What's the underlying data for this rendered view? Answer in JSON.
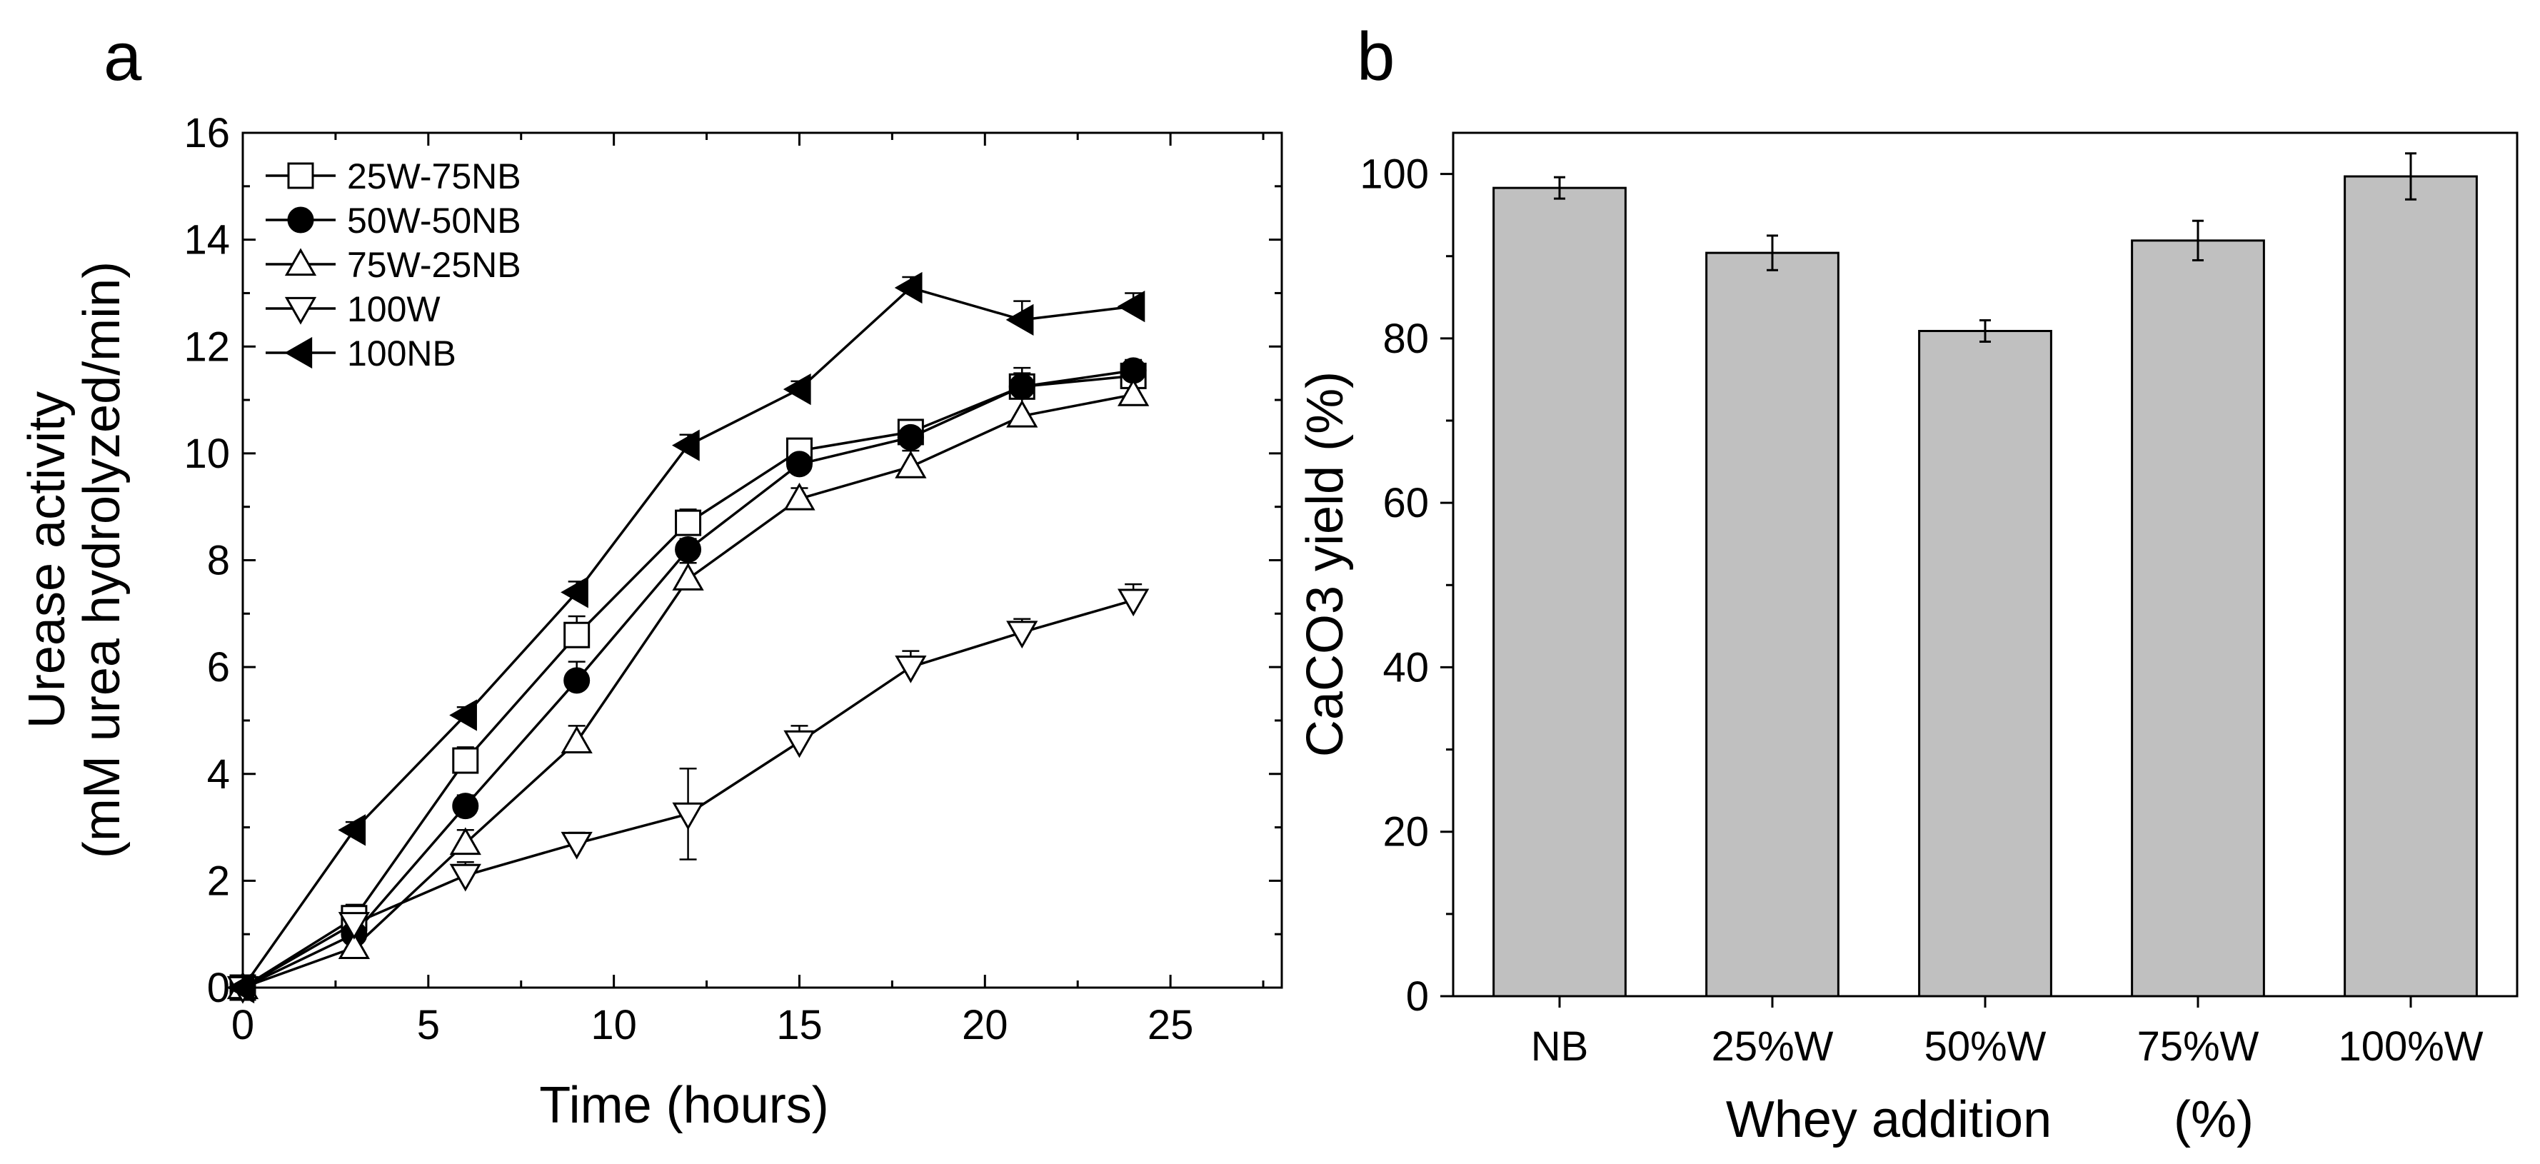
{
  "panels": {
    "a": {
      "letter": "a"
    },
    "b": {
      "letter": "b"
    }
  },
  "chart_data": [
    {
      "id": "a",
      "type": "line",
      "title": "",
      "xlabel": "Time (hours)",
      "ylabel_line1": "Urease activity",
      "ylabel_line2": "(mM urea hydrolyzed/min)",
      "xlim": [
        0,
        28
      ],
      "ylim": [
        0,
        16
      ],
      "xticks": [
        0,
        5,
        10,
        15,
        20,
        25
      ],
      "xtick_labels": [
        "0",
        "5",
        "10",
        "15",
        "20",
        "25"
      ],
      "yticks": [
        0,
        2,
        4,
        6,
        8,
        10,
        12,
        14,
        16
      ],
      "ytick_labels": [
        "0",
        "2",
        "4",
        "6",
        "8",
        "10",
        "12",
        "14",
        "16"
      ],
      "grid": false,
      "legend_position": "top-left",
      "line_color": "#000000",
      "x": [
        0,
        3,
        6,
        9,
        12,
        15,
        18,
        21,
        24
      ],
      "series": [
        {
          "name": "25W-75NB",
          "marker": "square-open",
          "values": [
            0,
            1.3,
            4.25,
            6.6,
            8.7,
            10.05,
            10.4,
            11.25,
            11.45
          ],
          "errors": [
            0.05,
            0.25,
            0.25,
            0.35,
            0.25,
            0.2,
            0.15,
            0.35,
            0.15
          ]
        },
        {
          "name": "50W-50NB",
          "marker": "circle-filled",
          "values": [
            0,
            1.0,
            3.4,
            5.75,
            8.2,
            9.8,
            10.3,
            11.25,
            11.55
          ],
          "errors": [
            0.05,
            0.2,
            0.2,
            0.35,
            0.2,
            0.2,
            0.2,
            0.25,
            0.2
          ]
        },
        {
          "name": "75W-25NB",
          "marker": "triangle-up-open",
          "values": [
            0,
            0.75,
            2.7,
            4.6,
            7.65,
            9.15,
            9.75,
            10.7,
            11.1
          ],
          "errors": [
            0.05,
            0.3,
            0.25,
            0.3,
            0.3,
            0.2,
            0.3,
            0.35,
            0.3
          ]
        },
        {
          "name": "100W",
          "marker": "triangle-down-open",
          "values": [
            0,
            1.2,
            2.1,
            2.7,
            3.25,
            4.6,
            6.0,
            6.65,
            7.25
          ],
          "errors": [
            0.05,
            0.35,
            0.25,
            0.2,
            0.85,
            0.3,
            0.3,
            0.25,
            0.3
          ]
        },
        {
          "name": "100NB",
          "marker": "triangle-left-filled",
          "values": [
            0,
            2.95,
            5.1,
            7.4,
            10.15,
            11.2,
            13.1,
            12.5,
            12.75
          ],
          "errors": [
            0.05,
            0.15,
            0.15,
            0.2,
            0.2,
            0.15,
            0.2,
            0.35,
            0.25
          ]
        }
      ]
    },
    {
      "id": "b",
      "type": "bar",
      "title": "",
      "xlabel": "Whey addition",
      "xlabel_unit": "(%)",
      "ylabel": "CaCO3 yield (%)",
      "ylim": [
        0,
        105
      ],
      "yticks": [
        0,
        20,
        40,
        60,
        80,
        100
      ],
      "ytick_labels": [
        "0",
        "20",
        "40",
        "60",
        "80",
        "100"
      ],
      "grid": false,
      "bar_color": "#c0c0c0",
      "categories": [
        "NB",
        "25%W",
        "50%W",
        "75%W",
        "100%W"
      ],
      "values": [
        98.3,
        90.4,
        80.9,
        91.9,
        99.7
      ],
      "errors": [
        1.3,
        2.1,
        1.3,
        2.4,
        2.8
      ]
    }
  ]
}
